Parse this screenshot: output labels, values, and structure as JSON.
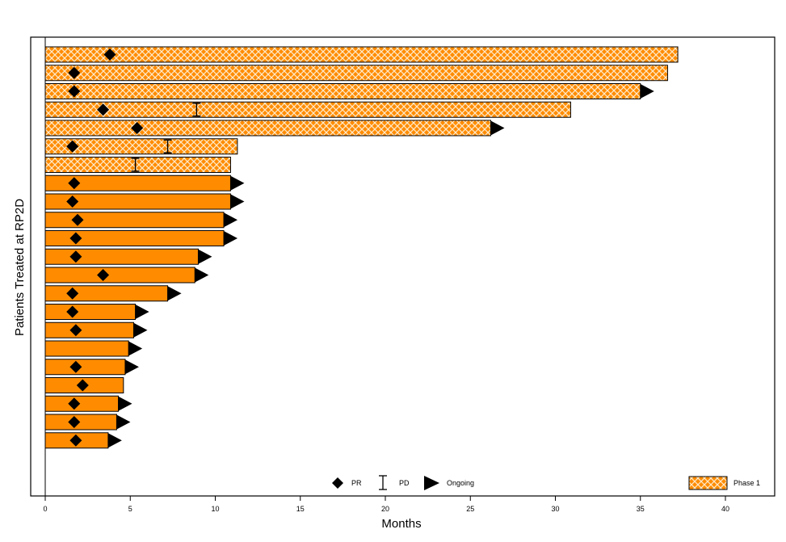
{
  "chart_data": {
    "type": "bar",
    "orientation": "horizontal",
    "title": "",
    "xlabel": "Months",
    "ylabel": "Patients Treated at RP2D",
    "xlim": [
      0,
      43
    ],
    "xticks": [
      0,
      5,
      10,
      15,
      20,
      25,
      30,
      35,
      40
    ],
    "grid": false,
    "legend": {
      "markers": [
        {
          "symbol": "diamond",
          "label": "PR"
        },
        {
          "symbol": "ibeam",
          "label": "PD"
        },
        {
          "symbol": "triangle",
          "label": "Ongoing"
        }
      ],
      "phase": {
        "label": "Phase 1",
        "pattern": "crosshatch"
      }
    },
    "colors": {
      "bar": "#ff8c00",
      "hatch": "#ffe8c8",
      "border": "#000000"
    },
    "patients": [
      {
        "duration": 37.2,
        "phase1": true,
        "pr": 3.8,
        "pd": null,
        "ongoing": false
      },
      {
        "duration": 36.6,
        "phase1": true,
        "pr": 1.7,
        "pd": null,
        "ongoing": false
      },
      {
        "duration": 35.0,
        "phase1": true,
        "pr": 1.7,
        "pd": null,
        "ongoing": true
      },
      {
        "duration": 30.9,
        "phase1": true,
        "pr": 3.4,
        "pd": 8.9,
        "ongoing": false
      },
      {
        "duration": 26.2,
        "phase1": true,
        "pr": 5.4,
        "pd": null,
        "ongoing": true
      },
      {
        "duration": 11.3,
        "phase1": true,
        "pr": 1.6,
        "pd": 7.2,
        "ongoing": false
      },
      {
        "duration": 10.9,
        "phase1": true,
        "pr": null,
        "pd": 5.3,
        "ongoing": false
      },
      {
        "duration": 10.9,
        "phase1": false,
        "pr": 1.7,
        "pd": null,
        "ongoing": true
      },
      {
        "duration": 10.9,
        "phase1": false,
        "pr": 1.6,
        "pd": null,
        "ongoing": true
      },
      {
        "duration": 10.5,
        "phase1": false,
        "pr": 1.9,
        "pd": null,
        "ongoing": true
      },
      {
        "duration": 10.5,
        "phase1": false,
        "pr": 1.8,
        "pd": null,
        "ongoing": true
      },
      {
        "duration": 9.0,
        "phase1": false,
        "pr": 1.8,
        "pd": null,
        "ongoing": true
      },
      {
        "duration": 8.8,
        "phase1": false,
        "pr": 3.4,
        "pd": null,
        "ongoing": true
      },
      {
        "duration": 7.2,
        "phase1": false,
        "pr": 1.6,
        "pd": null,
        "ongoing": true
      },
      {
        "duration": 5.3,
        "phase1": false,
        "pr": 1.6,
        "pd": null,
        "ongoing": true
      },
      {
        "duration": 5.2,
        "phase1": false,
        "pr": 1.8,
        "pd": null,
        "ongoing": true
      },
      {
        "duration": 4.9,
        "phase1": false,
        "pr": null,
        "pd": null,
        "ongoing": true
      },
      {
        "duration": 4.7,
        "phase1": false,
        "pr": 1.8,
        "pd": null,
        "ongoing": true
      },
      {
        "duration": 4.6,
        "phase1": false,
        "pr": 2.2,
        "pd": null,
        "ongoing": false
      },
      {
        "duration": 4.3,
        "phase1": false,
        "pr": 1.7,
        "pd": null,
        "ongoing": true
      },
      {
        "duration": 4.2,
        "phase1": false,
        "pr": 1.7,
        "pd": null,
        "ongoing": true
      },
      {
        "duration": 3.7,
        "phase1": false,
        "pr": 1.8,
        "pd": null,
        "ongoing": true
      }
    ]
  }
}
